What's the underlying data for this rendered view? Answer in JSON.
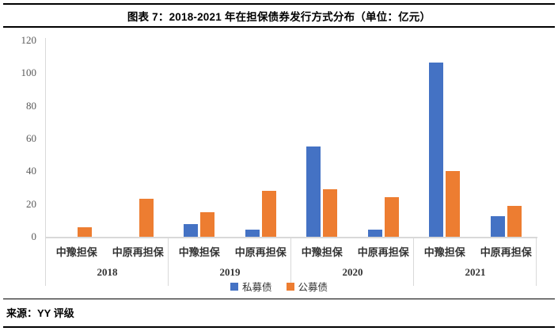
{
  "header": {
    "title": "图表 7：2018-2021 年在担保债券发行方式分布（单位：亿元）"
  },
  "footer": {
    "source": "来源：YY 评级"
  },
  "chart_data": {
    "type": "bar",
    "title": "图表 7：2018-2021 年在担保债券发行方式分布（单位：亿元）",
    "unit": "亿元",
    "ylim": [
      0,
      120
    ],
    "yticks": [
      120,
      100,
      80,
      60,
      40,
      20,
      0
    ],
    "grid": false,
    "legend_position": "bottom",
    "group_labels": [
      "2018",
      "2019",
      "2020",
      "2021"
    ],
    "categories": [
      "中豫担保",
      "中原再担保",
      "中豫担保",
      "中原再担保",
      "中豫担保",
      "中原再担保",
      "中豫担保",
      "中原再担保"
    ],
    "series": [
      {
        "name": "私募债",
        "color": "#4472C4",
        "values": [
          0,
          0,
          7.5,
          4.5,
          55,
          4.5,
          106.5,
          12.5
        ]
      },
      {
        "name": "公募债",
        "color": "#ED7D31",
        "values": [
          6,
          23,
          15,
          28,
          29,
          24,
          40,
          19
        ]
      }
    ],
    "axis_colors": {
      "line": "#d9d9d9",
      "tick_label": "#595959"
    }
  }
}
